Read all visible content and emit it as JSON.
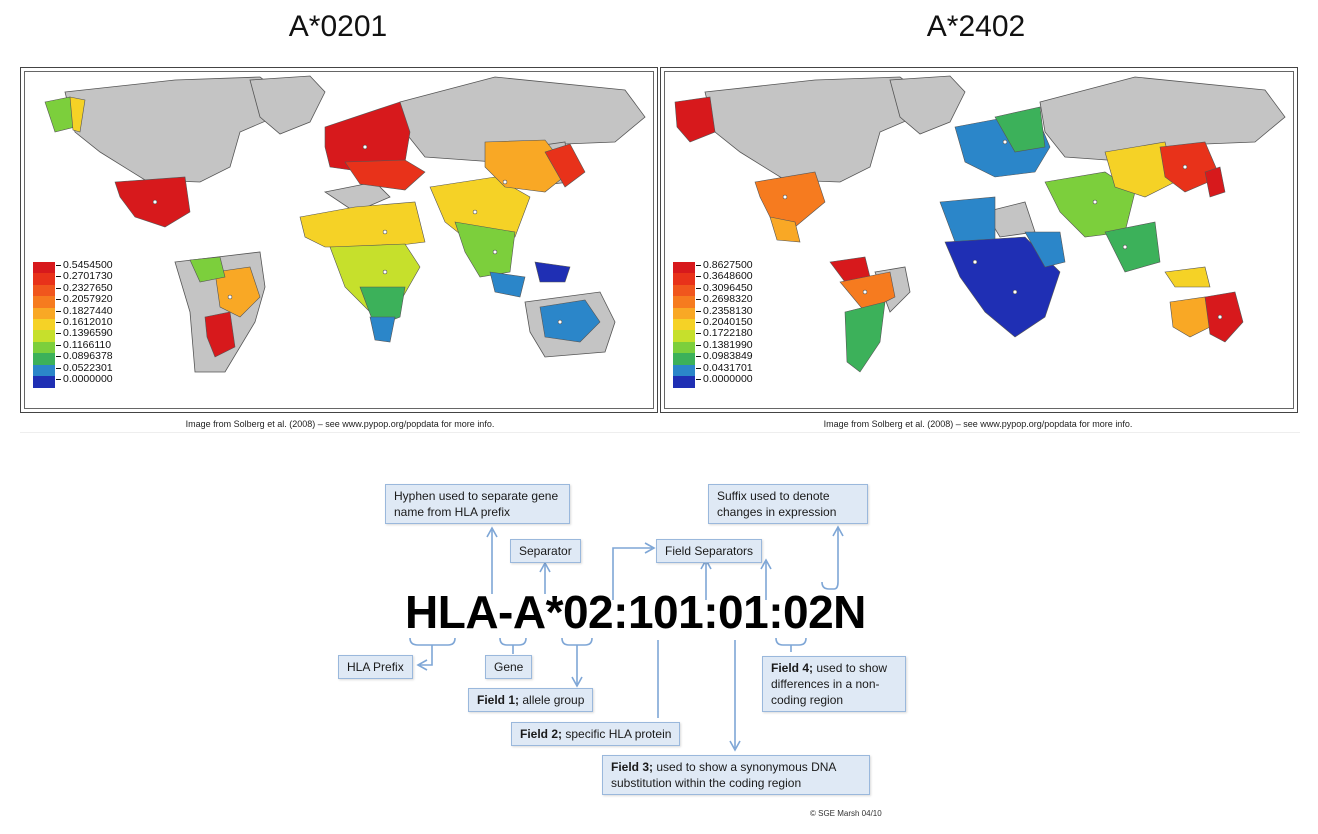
{
  "maps": [
    {
      "title": "A*0201",
      "legend": [
        "0.5454500",
        "0.2701730",
        "0.2327650",
        "0.2057920",
        "0.1827440",
        "0.1612010",
        "0.1396590",
        "0.1166110",
        "0.0896378",
        "0.0522301",
        "0.0000000"
      ],
      "caption": "Image from Solberg et al. (2008) – see www.pypop.org/popdata for more info."
    },
    {
      "title": "A*2402",
      "legend": [
        "0.8627500",
        "0.3648600",
        "0.3096450",
        "0.2698320",
        "0.2358130",
        "0.2040150",
        "0.1722180",
        "0.1381990",
        "0.0983849",
        "0.0431701",
        "0.0000000"
      ],
      "caption": "Image from Solberg et al. (2008) – see www.pypop.org/popdata for more info."
    }
  ],
  "legend_colors": [
    "#d7191c",
    "#e8321a",
    "#f0561d",
    "#f67b1f",
    "#f9a825",
    "#f5d226",
    "#c6e02c",
    "#7ccf3c",
    "#3cb15a",
    "#2b86c9",
    "#1f2fb4"
  ],
  "hla": {
    "code": "HLA-A*02:101:01:02N",
    "notes": {
      "hyphen": "Hyphen used to separate gene name from HLA prefix",
      "separator": "Separator",
      "field_separators": "Field Separators",
      "suffix": "Suffix used to denote changes in expression",
      "prefix": "HLA Prefix",
      "gene": "Gene",
      "field1_bold": "Field 1;",
      "field1_text": " allele group",
      "field2_bold": "Field 2;",
      "field2_text": " specific HLA protein",
      "field3_bold": "Field 3;",
      "field3_text": " used to show a synonymous DNA substitution within the coding region",
      "field4_bold": "Field 4;",
      "field4_text": " used to show differences in a non-coding region"
    },
    "copyright": "© SGE Marsh 04/10"
  }
}
